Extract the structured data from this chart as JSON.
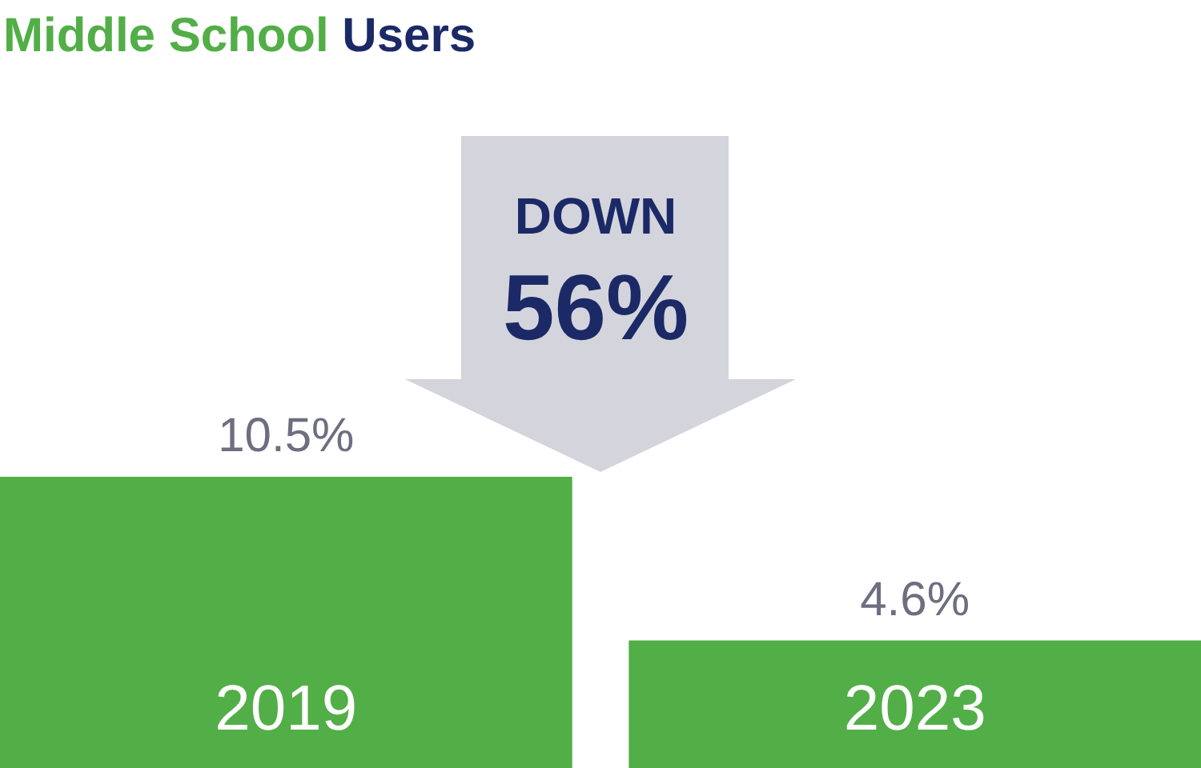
{
  "chart_data": {
    "type": "bar",
    "title": "Middle School Users",
    "categories": [
      "2019",
      "2023"
    ],
    "values": [
      10.5,
      4.6
    ],
    "value_labels": [
      "10.5%",
      "4.6%"
    ],
    "color": "#52ae47",
    "annotations": [
      "DOWN",
      "56%"
    ]
  }
}
